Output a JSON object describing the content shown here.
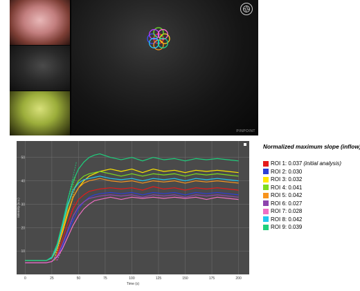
{
  "viewer": {
    "brand_text": "PINPOINT",
    "logo_icon": "camera-aperture-icon",
    "roi_circle_colors": [
      "#ff2d2d",
      "#3b4cff",
      "#ffd21f",
      "#6fe12a",
      "#ff9a1a",
      "#b53cff",
      "#ff6fd0",
      "#27c7ff",
      "#1fd38c"
    ]
  },
  "legend": {
    "title": "Normalized maximum slope (inflow)",
    "items": [
      {
        "label": "ROI 1: 0.037",
        "note": "(initial analysis)",
        "color": "#e41a1c"
      },
      {
        "label": "ROI 2: 0.030",
        "note": "",
        "color": "#2c3fd6"
      },
      {
        "label": "ROI 3: 0.032",
        "note": "",
        "color": "#ffe600"
      },
      {
        "label": "ROI 4: 0.041",
        "note": "",
        "color": "#7ddc1f"
      },
      {
        "label": "ROI 5: 0.042",
        "note": "",
        "color": "#f7941d"
      },
      {
        "label": "ROI 6: 0.027",
        "note": "",
        "color": "#8e44ad"
      },
      {
        "label": "ROI 7: 0.028",
        "note": "",
        "color": "#f06fc4"
      },
      {
        "label": "ROI 8: 0.042",
        "note": "",
        "color": "#22c7ee"
      },
      {
        "label": "ROI 9: 0.039",
        "note": "",
        "color": "#1ed07d"
      }
    ]
  },
  "chart_data": {
    "type": "line",
    "xlabel": "Time (s)",
    "ylabel": "Intensity (a.u.)",
    "xlim": [
      -8,
      210
    ],
    "ylim": [
      0,
      57
    ],
    "xticks": [
      0,
      25,
      50,
      75,
      100,
      125,
      150,
      175,
      200
    ],
    "yticks": [
      10,
      20,
      30,
      40,
      50
    ],
    "grid": true,
    "background": "#4a4a4a",
    "series": [
      {
        "name": "ROI 1",
        "color": "#e41a1c",
        "x": [
          0,
          10,
          20,
          25,
          30,
          35,
          40,
          45,
          50,
          55,
          60,
          65,
          70,
          80,
          90,
          100,
          110,
          120,
          130,
          140,
          150,
          160,
          170,
          180,
          190,
          200
        ],
        "y": [
          5,
          5,
          5,
          5.5,
          9,
          15,
          22,
          28,
          32,
          34,
          35.5,
          36,
          36.5,
          37,
          36.5,
          37,
          36,
          37.5,
          36.5,
          37,
          36,
          37,
          36.5,
          37,
          36.5,
          36
        ]
      },
      {
        "name": "ROI 2",
        "color": "#2c3fd6",
        "x": [
          0,
          10,
          20,
          25,
          30,
          35,
          40,
          45,
          50,
          55,
          60,
          65,
          70,
          80,
          90,
          100,
          110,
          120,
          130,
          140,
          150,
          160,
          170,
          180,
          190,
          200
        ],
        "y": [
          5,
          5,
          5,
          5.5,
          8,
          12,
          18,
          23,
          28,
          31,
          33,
          34,
          34.5,
          35,
          34.5,
          35,
          34,
          35,
          34.5,
          35,
          34,
          35,
          34.5,
          35,
          34.5,
          34
        ]
      },
      {
        "name": "ROI 3",
        "color": "#ffe600",
        "x": [
          0,
          10,
          20,
          25,
          30,
          35,
          40,
          45,
          50,
          55,
          60,
          65,
          70,
          80,
          90,
          100,
          110,
          120,
          130,
          140,
          150,
          160,
          170,
          180,
          190,
          200
        ],
        "y": [
          6,
          6,
          6,
          7,
          11,
          18,
          26,
          33,
          37,
          40,
          42,
          43,
          44,
          45,
          44,
          45,
          43.5,
          45,
          44,
          44.5,
          43.5,
          44.5,
          44,
          44.5,
          44,
          43.5
        ]
      },
      {
        "name": "ROI 4",
        "color": "#7ddc1f",
        "x": [
          0,
          10,
          20,
          25,
          30,
          35,
          40,
          45,
          50,
          55,
          60,
          65,
          70,
          80,
          90,
          100,
          110,
          120,
          130,
          140,
          150,
          160,
          170,
          180,
          190,
          200
        ],
        "y": [
          6,
          6,
          6,
          7,
          12,
          20,
          29,
          36,
          40,
          42,
          43,
          43.5,
          44,
          43,
          42,
          43,
          42,
          43,
          42.5,
          43,
          42,
          43,
          42.5,
          43,
          42.5,
          42
        ]
      },
      {
        "name": "ROI 5",
        "color": "#f7941d",
        "x": [
          0,
          10,
          20,
          25,
          30,
          35,
          40,
          45,
          50,
          55,
          60,
          65,
          70,
          80,
          90,
          100,
          110,
          120,
          130,
          140,
          150,
          160,
          170,
          180,
          190,
          200
        ],
        "y": [
          6,
          6,
          6,
          7,
          11,
          19,
          27,
          33,
          37,
          39,
          40,
          40.5,
          41,
          40,
          39.5,
          40,
          39,
          40,
          39.5,
          40,
          39,
          40,
          39.5,
          40,
          39.5,
          39
        ]
      },
      {
        "name": "ROI 6",
        "color": "#8e44ad",
        "x": [
          0,
          10,
          20,
          25,
          30,
          35,
          40,
          45,
          50,
          55,
          60,
          65,
          70,
          80,
          90,
          100,
          110,
          120,
          130,
          140,
          150,
          160,
          170,
          180,
          190,
          200
        ],
        "y": [
          5,
          5,
          5,
          5.5,
          8,
          13,
          19,
          25,
          29,
          31,
          32.5,
          33,
          33.5,
          34,
          33.5,
          34,
          33,
          34,
          33.5,
          34,
          33,
          34,
          33.5,
          34,
          33.5,
          33
        ]
      },
      {
        "name": "ROI 7",
        "color": "#f06fc4",
        "x": [
          0,
          10,
          20,
          25,
          30,
          35,
          40,
          45,
          50,
          55,
          60,
          65,
          70,
          80,
          90,
          100,
          110,
          120,
          130,
          140,
          150,
          160,
          170,
          180,
          190,
          200
        ],
        "y": [
          5,
          5,
          5,
          5.5,
          7.5,
          11,
          16,
          21,
          25,
          28,
          30,
          31.5,
          32,
          33,
          32,
          33,
          32.5,
          33,
          32.5,
          33,
          32.5,
          33,
          32,
          33,
          32.5,
          32
        ]
      },
      {
        "name": "ROI 8",
        "color": "#22c7ee",
        "x": [
          0,
          10,
          20,
          25,
          30,
          35,
          40,
          45,
          50,
          55,
          60,
          65,
          70,
          80,
          90,
          100,
          110,
          120,
          130,
          140,
          150,
          160,
          170,
          180,
          190,
          200
        ],
        "y": [
          6,
          6,
          6,
          7,
          12,
          21,
          30,
          36,
          39,
          40.5,
          41,
          41.5,
          42,
          41,
          40.5,
          41,
          40,
          41,
          40.5,
          41,
          40,
          41,
          40.5,
          41,
          40.5,
          40
        ]
      },
      {
        "name": "ROI 9",
        "color": "#1ed07d",
        "x": [
          0,
          10,
          20,
          25,
          30,
          35,
          40,
          45,
          50,
          55,
          60,
          65,
          70,
          80,
          90,
          100,
          110,
          120,
          130,
          140,
          150,
          160,
          170,
          180,
          190,
          200
        ],
        "y": [
          6,
          6,
          6,
          7.5,
          13,
          22,
          32,
          40,
          45,
          48,
          50,
          51,
          51.5,
          50,
          49,
          50,
          48.5,
          50,
          49,
          49.5,
          48.5,
          49.5,
          49,
          49.5,
          49,
          48.5
        ]
      }
    ]
  }
}
